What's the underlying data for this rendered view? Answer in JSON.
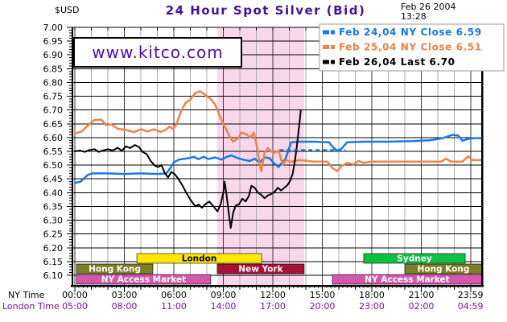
{
  "header": {
    "currency_label": "$USD",
    "title": "24 Hour Spot Silver (Bid)",
    "date": "Feb 26 2004",
    "time": "13:28"
  },
  "watermark": "www.kitco.com",
  "legend": [
    {
      "label": "Feb 24,04 NY Close 6.59",
      "color": "#1778e8"
    },
    {
      "label": "Feb 25,04 NY Close 6.51",
      "color": "#ef8248"
    },
    {
      "label": "Feb 26,04 Last 6.70",
      "color": "#000000"
    }
  ],
  "axis": {
    "ny_row_label": "NY Time",
    "london_row_label": "London Time",
    "y_ticks": [
      "7.00",
      "6.95",
      "6.90",
      "6.85",
      "6.80",
      "6.75",
      "6.70",
      "6.65",
      "6.60",
      "6.55",
      "6.50",
      "6.45",
      "6.40",
      "6.35",
      "6.30",
      "6.25",
      "6.20",
      "6.15",
      "6.10"
    ],
    "tick_hours": [
      0,
      3,
      6,
      9,
      12,
      15,
      18,
      21,
      23.983
    ],
    "ny_times": [
      "00:00",
      "03:00",
      "06:00",
      "09:00",
      "12:00",
      "15:00",
      "18:00",
      "21:00",
      "23:59"
    ],
    "london_times": [
      "05:00",
      "08:00",
      "11:00",
      "14:00",
      "17:00",
      "20:00",
      "23:00",
      "02:00",
      "04:59"
    ]
  },
  "sessions": [
    {
      "label": "London",
      "row": 0,
      "start_hour": 3.76,
      "end_hour": 11.32,
      "color": "#ffe800",
      "text_color": "#000000"
    },
    {
      "label": "Sydney",
      "row": 0,
      "start_hour": 17.51,
      "end_hour": 23.66,
      "color": "#0fc143",
      "text_color": "#ffffff"
    },
    {
      "label": "Hong Kong",
      "row": 1,
      "start_hour": 0.1,
      "end_hour": 4.73,
      "color": "#7e7e28",
      "text_color": "#ffffff"
    },
    {
      "label": "New York",
      "row": 1,
      "start_hour": 8.63,
      "end_hour": 13.9,
      "color": "#a51236",
      "text_color": "#ffffff"
    },
    {
      "label": "Hong Kong",
      "row": 1,
      "start_hour": 20.0,
      "end_hour": 24.68,
      "color": "#7e7e28",
      "text_color": "#ffffff"
    },
    {
      "label": "NY Access Market",
      "row": 2,
      "start_hour": 0.1,
      "end_hour": 8.24,
      "color": "#d457ad",
      "text_color": "#ffffff"
    },
    {
      "label": "NY Access Market",
      "row": 2,
      "start_hour": 15.61,
      "end_hour": 24.68,
      "color": "#d457ad",
      "text_color": "#ffffff"
    }
  ],
  "colors": {
    "title": "#41109b",
    "watermark_text": "#4a10a0",
    "london_time_text": "#7b0fa8",
    "pink_band": "#f9d7ea",
    "grid_h": "#000000",
    "grid_v_minor": "#aaaaaa",
    "grid_v_major": "#3a3a3a",
    "axis": "#000000",
    "legend_border": "#999999"
  },
  "chart_data": {
    "type": "line",
    "title": "24 Hour Spot Silver (Bid)",
    "units": "USD per ounce",
    "x_axis": "hours, NY time",
    "x_range_hours": [
      0,
      24.68
    ],
    "y_range": [
      6.1,
      7.0
    ],
    "y_grid_step": 0.05,
    "ny_session_band_hours": [
      8.63,
      13.9
    ],
    "dashed_segment": {
      "value": 6.555,
      "hours": [
        12.4,
        16.4
      ],
      "color": "#1778e8"
    },
    "series": [
      {
        "name": "Feb 24,04",
        "note": "NY Close 6.59",
        "color": "#1778e8",
        "width": 2.5,
        "points": [
          [
            0,
            6.435
          ],
          [
            0.35,
            6.44
          ],
          [
            0.8,
            6.465
          ],
          [
            1.1,
            6.47
          ],
          [
            2.0,
            6.47
          ],
          [
            3.0,
            6.468
          ],
          [
            4.0,
            6.47
          ],
          [
            5.0,
            6.468
          ],
          [
            5.55,
            6.47
          ],
          [
            5.8,
            6.49
          ],
          [
            6.0,
            6.51
          ],
          [
            6.3,
            6.52
          ],
          [
            6.9,
            6.525
          ],
          [
            7.2,
            6.53
          ],
          [
            7.5,
            6.522
          ],
          [
            7.8,
            6.53
          ],
          [
            8.1,
            6.522
          ],
          [
            8.5,
            6.528
          ],
          [
            8.9,
            6.52
          ],
          [
            9.2,
            6.53
          ],
          [
            9.5,
            6.535
          ],
          [
            9.8,
            6.527
          ],
          [
            10.2,
            6.52
          ],
          [
            10.6,
            6.515
          ],
          [
            10.9,
            6.523
          ],
          [
            11.2,
            6.51
          ],
          [
            11.5,
            6.528
          ],
          [
            11.8,
            6.525
          ],
          [
            12.1,
            6.505
          ],
          [
            12.35,
            6.493
          ],
          [
            12.55,
            6.51
          ],
          [
            12.75,
            6.52
          ],
          [
            12.95,
            6.555
          ],
          [
            13.1,
            6.583
          ],
          [
            13.5,
            6.585
          ],
          [
            14.5,
            6.585
          ],
          [
            15.4,
            6.583
          ],
          [
            15.7,
            6.562
          ],
          [
            15.95,
            6.55
          ],
          [
            16.2,
            6.562
          ],
          [
            16.5,
            6.583
          ],
          [
            17.5,
            6.585
          ],
          [
            19,
            6.585
          ],
          [
            20.5,
            6.587
          ],
          [
            21.5,
            6.59
          ],
          [
            22.3,
            6.598
          ],
          [
            22.9,
            6.61
          ],
          [
            23.25,
            6.607
          ],
          [
            23.5,
            6.588
          ],
          [
            23.8,
            6.595
          ],
          [
            24.2,
            6.598
          ],
          [
            24.68,
            6.598
          ]
        ]
      },
      {
        "name": "Feb 25,04",
        "note": "NY Close 6.51",
        "color": "#ef8248",
        "width": 2.5,
        "points": [
          [
            0,
            6.615
          ],
          [
            0.4,
            6.622
          ],
          [
            0.9,
            6.65
          ],
          [
            1.15,
            6.663
          ],
          [
            1.6,
            6.665
          ],
          [
            1.9,
            6.645
          ],
          [
            2.2,
            6.648
          ],
          [
            2.6,
            6.632
          ],
          [
            3.1,
            6.627
          ],
          [
            3.6,
            6.62
          ],
          [
            4.0,
            6.63
          ],
          [
            4.4,
            6.622
          ],
          [
            4.8,
            6.63
          ],
          [
            5.2,
            6.62
          ],
          [
            5.5,
            6.628
          ],
          [
            5.75,
            6.64
          ],
          [
            5.95,
            6.63
          ],
          [
            6.15,
            6.648
          ],
          [
            6.4,
            6.69
          ],
          [
            6.7,
            6.725
          ],
          [
            7.0,
            6.738
          ],
          [
            7.3,
            6.762
          ],
          [
            7.6,
            6.768
          ],
          [
            7.9,
            6.755
          ],
          [
            8.2,
            6.742
          ],
          [
            8.5,
            6.72
          ],
          [
            8.8,
            6.675
          ],
          [
            9.1,
            6.638
          ],
          [
            9.4,
            6.602
          ],
          [
            9.6,
            6.585
          ],
          [
            9.9,
            6.598
          ],
          [
            10.1,
            6.618
          ],
          [
            10.4,
            6.612
          ],
          [
            10.65,
            6.6
          ],
          [
            10.85,
            6.618
          ],
          [
            11.05,
            6.565
          ],
          [
            11.2,
            6.505
          ],
          [
            11.3,
            6.478
          ],
          [
            11.5,
            6.545
          ],
          [
            11.7,
            6.562
          ],
          [
            11.9,
            6.55
          ],
          [
            12.1,
            6.545
          ],
          [
            12.35,
            6.552
          ],
          [
            12.6,
            6.502
          ],
          [
            12.8,
            6.518
          ],
          [
            13.1,
            6.512
          ],
          [
            13.6,
            6.518
          ],
          [
            14.5,
            6.513
          ],
          [
            15.3,
            6.513
          ],
          [
            15.6,
            6.49
          ],
          [
            15.9,
            6.478
          ],
          [
            16.2,
            6.498
          ],
          [
            16.5,
            6.508
          ],
          [
            16.9,
            6.503
          ],
          [
            17.2,
            6.515
          ],
          [
            17.5,
            6.508
          ],
          [
            18,
            6.513
          ],
          [
            19.5,
            6.513
          ],
          [
            21,
            6.513
          ],
          [
            22.2,
            6.513
          ],
          [
            22.5,
            6.523
          ],
          [
            22.8,
            6.513
          ],
          [
            23.5,
            6.513
          ],
          [
            23.85,
            6.532
          ],
          [
            24.1,
            6.518
          ],
          [
            24.68,
            6.518
          ]
        ]
      },
      {
        "name": "Feb 26,04",
        "note": "Last 6.70",
        "color": "#000000",
        "width": 2,
        "points": [
          [
            0,
            6.55
          ],
          [
            0.3,
            6.553
          ],
          [
            0.6,
            6.548
          ],
          [
            0.9,
            6.555
          ],
          [
            1.2,
            6.558
          ],
          [
            1.45,
            6.548
          ],
          [
            1.7,
            6.553
          ],
          [
            2.0,
            6.558
          ],
          [
            2.3,
            6.553
          ],
          [
            2.6,
            6.563
          ],
          [
            2.85,
            6.552
          ],
          [
            3.1,
            6.568
          ],
          [
            3.35,
            6.562
          ],
          [
            3.65,
            6.573
          ],
          [
            3.9,
            6.565
          ],
          [
            4.1,
            6.548
          ],
          [
            4.35,
            6.54
          ],
          [
            4.6,
            6.515
          ],
          [
            4.85,
            6.498
          ],
          [
            5.05,
            6.493
          ],
          [
            5.25,
            6.5
          ],
          [
            5.45,
            6.472
          ],
          [
            5.65,
            6.455
          ],
          [
            5.85,
            6.475
          ],
          [
            6.05,
            6.468
          ],
          [
            6.25,
            6.452
          ],
          [
            6.5,
            6.428
          ],
          [
            6.75,
            6.4
          ],
          [
            7.0,
            6.375
          ],
          [
            7.3,
            6.35
          ],
          [
            7.5,
            6.357
          ],
          [
            7.7,
            6.345
          ],
          [
            7.95,
            6.36
          ],
          [
            8.15,
            6.368
          ],
          [
            8.4,
            6.35
          ],
          [
            8.65,
            6.332
          ],
          [
            8.85,
            6.36
          ],
          [
            9.0,
            6.4
          ],
          [
            9.08,
            6.44
          ],
          [
            9.2,
            6.39
          ],
          [
            9.32,
            6.33
          ],
          [
            9.45,
            6.272
          ],
          [
            9.6,
            6.328
          ],
          [
            9.75,
            6.353
          ],
          [
            9.95,
            6.358
          ],
          [
            10.15,
            6.378
          ],
          [
            10.35,
            6.368
          ],
          [
            10.55,
            6.388
          ],
          [
            10.7,
            6.425
          ],
          [
            10.9,
            6.418
          ],
          [
            11.1,
            6.4
          ],
          [
            11.3,
            6.392
          ],
          [
            11.5,
            6.38
          ],
          [
            11.7,
            6.39
          ],
          [
            11.9,
            6.395
          ],
          [
            12.1,
            6.402
          ],
          [
            12.3,
            6.418
          ],
          [
            12.5,
            6.408
          ],
          [
            12.7,
            6.418
          ],
          [
            12.9,
            6.428
          ],
          [
            13.05,
            6.443
          ],
          [
            13.2,
            6.468
          ],
          [
            13.35,
            6.52
          ],
          [
            13.45,
            6.565
          ],
          [
            13.55,
            6.618
          ],
          [
            13.62,
            6.655
          ],
          [
            13.7,
            6.7
          ]
        ]
      }
    ]
  }
}
